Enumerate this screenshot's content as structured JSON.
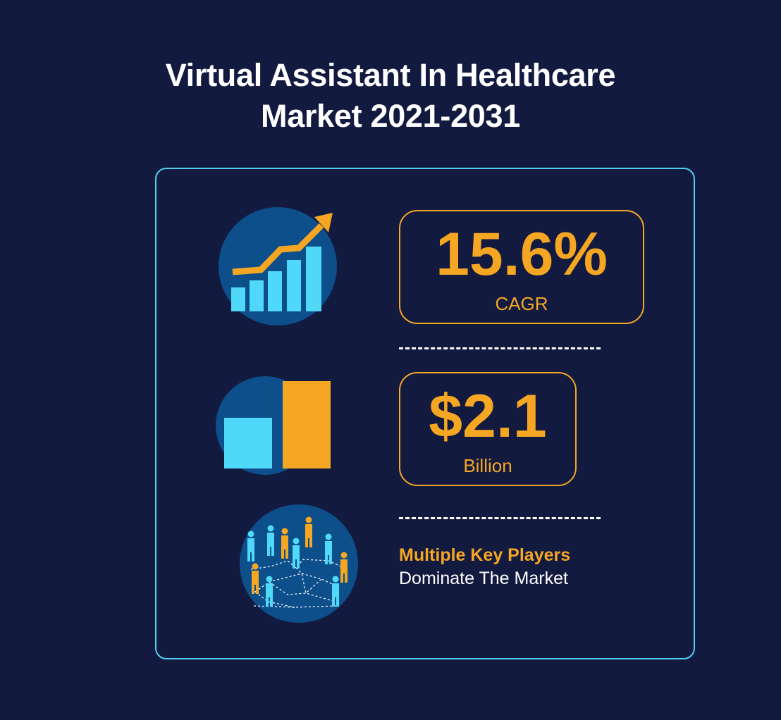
{
  "title": {
    "line1": "Virtual Assistant In Healthcare",
    "line2": "Market 2021-2031"
  },
  "stats": {
    "cagr": {
      "value": "15.6%",
      "label": "CAGR"
    },
    "market_size": {
      "value": "$2.1",
      "label": "Billion"
    }
  },
  "players": {
    "headline": "Multiple Key Players",
    "subline": "Dominate The Market"
  },
  "icons": [
    "growth-chart-icon",
    "bar-comparison-icon",
    "people-network-icon"
  ],
  "colors": {
    "background": "#131a40",
    "accent_orange": "#f5a623",
    "accent_cyan": "#4fd0f3",
    "circle_blue": "#0d4f8b"
  }
}
